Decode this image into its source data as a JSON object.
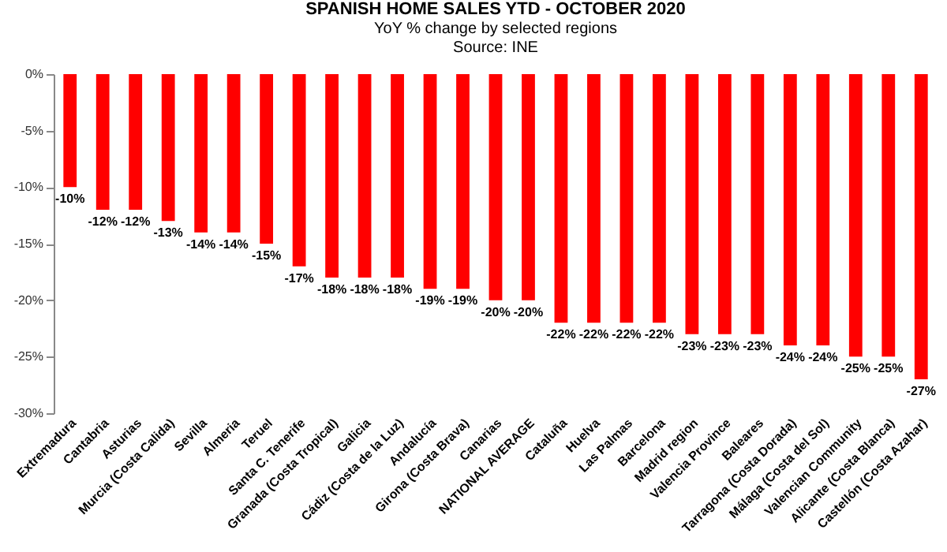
{
  "chart_data": {
    "type": "bar",
    "title": "SPANISH HOME SALES YTD - OCTOBER 2020",
    "subtitle": "YoY % change by selected regions",
    "annotations": [
      "Source: INE"
    ],
    "categories": [
      "Extremadura",
      "Cantabria",
      "Asturias",
      "Murcia (Costa Calida)",
      "Sevilla",
      "Almeria",
      "Teruel",
      "Santa C. Tenerife",
      "Granada (Costa Tropical)",
      "Galicia",
      "Cádiz (Costa de la Luz)",
      "Andalucía",
      "Girona (Costa Brava)",
      "Canarias",
      "NATIONAL AVERAGE",
      "Cataluña",
      "Huelva",
      "Las Palmas",
      "Barcelona",
      "Madrid region",
      "Valencia Province",
      "Baleares",
      "Tarragona (Costa Dorada)",
      "Málaga (Costa del Sol)",
      "Valencian Community",
      "Alicante (Costa Blanca)",
      "Castellón (Costa Azahar)"
    ],
    "values": [
      -10,
      -12,
      -12,
      -13,
      -14,
      -14,
      -15,
      -17,
      -18,
      -18,
      -18,
      -19,
      -19,
      -20,
      -20,
      -22,
      -22,
      -22,
      -22,
      -23,
      -23,
      -23,
      -24,
      -24,
      -25,
      -25,
      -27
    ],
    "value_labels": [
      "-10%",
      "-12%",
      "-12%",
      "-13%",
      "-14%",
      "-14%",
      "-15%",
      "-17%",
      "-18%",
      "-18%",
      "-18%",
      "-19%",
      "-19%",
      "-20%",
      "-20%",
      "-22%",
      "-22%",
      "-22%",
      "-22%",
      "-23%",
      "-23%",
      "-23%",
      "-24%",
      "-24%",
      "-25%",
      "-25%",
      "-27%"
    ],
    "color": "#ff0000",
    "ylim": [
      -30,
      0
    ],
    "yticks": [
      {
        "value": 0,
        "label": "0%"
      },
      {
        "value": -5,
        "label": "-5%"
      },
      {
        "value": -10,
        "label": "-10%"
      },
      {
        "value": -15,
        "label": "-15%"
      },
      {
        "value": -20,
        "label": "-20%"
      },
      {
        "value": -25,
        "label": "-25%"
      },
      {
        "value": -30,
        "label": "-30%"
      }
    ],
    "grid": false
  }
}
